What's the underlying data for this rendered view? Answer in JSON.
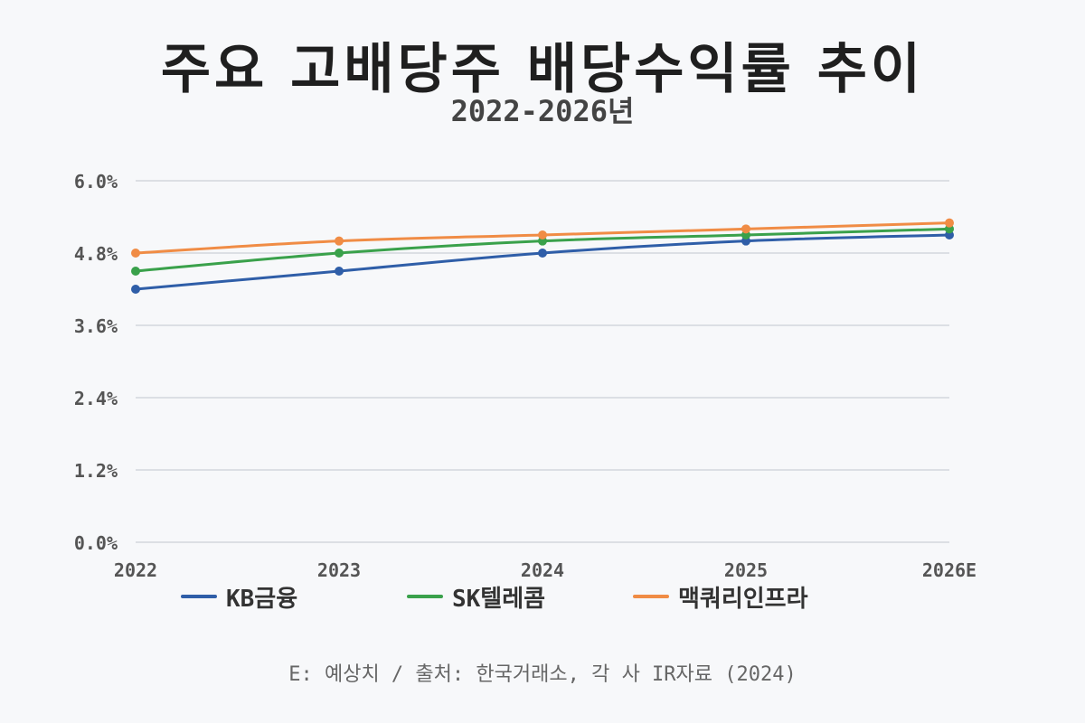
{
  "chart_data": {
    "type": "line",
    "title": "주요 고배당주 배당수익률 추이",
    "subtitle": "2022-2026년",
    "categories": [
      "2022",
      "2023",
      "2024",
      "2025",
      "2026E"
    ],
    "ylim": [
      0,
      6
    ],
    "yticks": [
      0,
      1.2,
      2.4,
      3.6,
      4.8,
      6.0
    ],
    "ytick_labels": [
      "0.0%",
      "1.2%",
      "2.4%",
      "3.6%",
      "4.8%",
      "6.0%"
    ],
    "grid": true,
    "legend_position": "bottom",
    "series": [
      {
        "name": "KB금융",
        "color": "#2f5ea8",
        "values": [
          4.2,
          4.5,
          4.8,
          5.0,
          5.1
        ]
      },
      {
        "name": "SK텔레콤",
        "color": "#3aa14b",
        "values": [
          4.5,
          4.8,
          5.0,
          5.1,
          5.2
        ]
      },
      {
        "name": "맥쿼리인프라",
        "color": "#f08c45",
        "values": [
          4.8,
          5.0,
          5.1,
          5.2,
          5.3
        ]
      }
    ],
    "note": "E: 예상치 / 출처: 한국거래소, 각 사 IR자료 (2024)"
  }
}
